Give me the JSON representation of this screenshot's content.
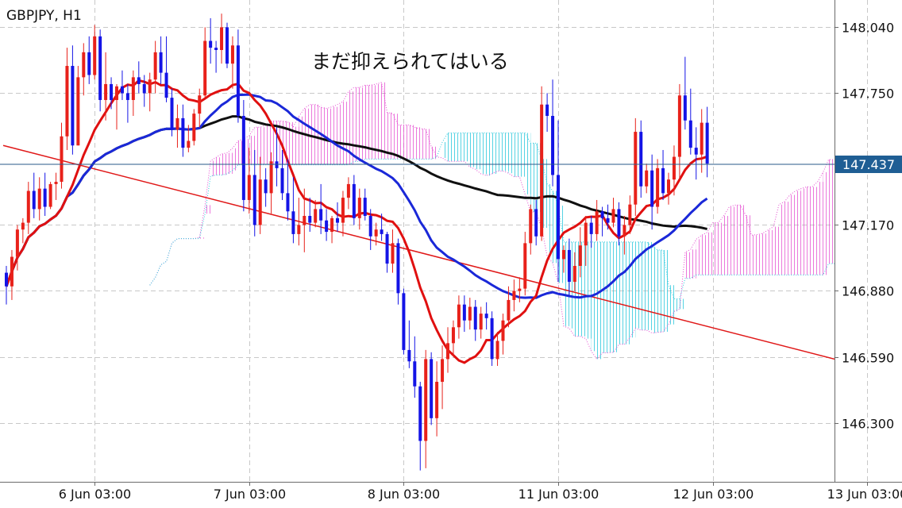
{
  "chart_title": "GBPJPY, H1",
  "annotation": "まだ抑えられてはいる",
  "current_price_label": "147.437",
  "colors": {
    "bull_candle": "#e8211a",
    "bear_candle": "#1414e6",
    "ma_short": "#e01010",
    "ma_mid": "#1a28d8",
    "ma_long": "#101010",
    "trendline": "#e01818",
    "cloud_bull": "#e44bd0",
    "cloud_bear": "#2cc8dc",
    "price_line": "#2a5a8a",
    "price_label_bg": "#1f5e94"
  },
  "chart_data": {
    "type": "candlestick",
    "title": "GBPJPY, H1",
    "y_ticks": [
      "148.040",
      "147.750",
      "147.170",
      "146.880",
      "146.590",
      "146.300"
    ],
    "x_ticks": [
      "6 Jun 03:00",
      "7 Jun 03:00",
      "8 Jun 03:00",
      "11 Jun 03:00",
      "12 Jun 03:00",
      "13 Jun 03:00"
    ],
    "ylim": [
      146.04,
      148.16
    ],
    "current_price": 147.437,
    "grid": true,
    "candles": [
      [
        146.96,
        146.99,
        146.82,
        146.9
      ],
      [
        146.9,
        147.06,
        146.84,
        147.03
      ],
      [
        147.03,
        147.17,
        146.97,
        147.15
      ],
      [
        147.15,
        147.2,
        147.09,
        147.18
      ],
      [
        147.18,
        147.36,
        147.13,
        147.32
      ],
      [
        147.32,
        147.4,
        147.2,
        147.24
      ],
      [
        147.24,
        147.38,
        147.19,
        147.33
      ],
      [
        147.33,
        147.4,
        147.21,
        147.25
      ],
      [
        147.25,
        147.36,
        147.24,
        147.35
      ],
      [
        147.35,
        147.4,
        147.28,
        147.36
      ],
      [
        147.36,
        147.62,
        147.33,
        147.56
      ],
      [
        147.56,
        147.95,
        147.5,
        147.87
      ],
      [
        147.87,
        147.96,
        147.48,
        147.52
      ],
      [
        147.52,
        147.87,
        147.52,
        147.82
      ],
      [
        147.82,
        147.97,
        147.74,
        147.93
      ],
      [
        147.93,
        148.0,
        147.79,
        147.83
      ],
      [
        147.83,
        148.05,
        147.81,
        148.0
      ],
      [
        148.0,
        148.03,
        147.67,
        147.72
      ],
      [
        147.72,
        147.93,
        147.63,
        147.79
      ],
      [
        147.79,
        147.82,
        147.68,
        147.72
      ],
      [
        147.72,
        147.79,
        147.59,
        147.78
      ],
      [
        147.78,
        147.85,
        147.72,
        147.75
      ],
      [
        147.75,
        147.79,
        147.62,
        147.72
      ],
      [
        147.72,
        147.85,
        147.65,
        147.82
      ],
      [
        147.82,
        147.89,
        147.75,
        147.79
      ],
      [
        147.79,
        147.83,
        147.69,
        147.75
      ],
      [
        147.75,
        147.84,
        147.67,
        147.81
      ],
      [
        147.81,
        147.98,
        147.75,
        147.93
      ],
      [
        147.93,
        148.0,
        147.79,
        147.84
      ],
      [
        147.84,
        148.0,
        147.71,
        147.73
      ],
      [
        147.73,
        147.77,
        147.56,
        147.59
      ],
      [
        147.59,
        147.7,
        147.51,
        147.64
      ],
      [
        147.64,
        147.7,
        147.47,
        147.51
      ],
      [
        147.51,
        147.61,
        147.49,
        147.54
      ],
      [
        147.54,
        147.68,
        147.52,
        147.66
      ],
      [
        147.66,
        147.77,
        147.6,
        147.74
      ],
      [
        147.74,
        148.04,
        147.73,
        147.98
      ],
      [
        147.98,
        148.08,
        147.88,
        147.95
      ],
      [
        147.95,
        147.98,
        147.84,
        147.94
      ],
      [
        147.94,
        148.1,
        147.88,
        148.04
      ],
      [
        148.04,
        148.06,
        147.86,
        147.88
      ],
      [
        147.88,
        148.0,
        147.77,
        147.96
      ],
      [
        147.96,
        148.03,
        147.62,
        147.65
      ],
      [
        147.65,
        147.72,
        147.23,
        147.28
      ],
      [
        147.28,
        147.51,
        147.22,
        147.39
      ],
      [
        147.39,
        147.5,
        147.12,
        147.17
      ],
      [
        147.17,
        147.47,
        147.13,
        147.37
      ],
      [
        147.37,
        147.42,
        147.25,
        147.31
      ],
      [
        147.31,
        147.49,
        147.22,
        147.45
      ],
      [
        147.45,
        147.6,
        147.34,
        147.42
      ],
      [
        147.42,
        147.5,
        147.28,
        147.31
      ],
      [
        147.31,
        147.46,
        147.19,
        147.23
      ],
      [
        147.23,
        147.38,
        147.09,
        147.13
      ],
      [
        147.13,
        147.29,
        147.08,
        147.17
      ],
      [
        147.17,
        147.33,
        147.05,
        147.21
      ],
      [
        147.21,
        147.29,
        147.14,
        147.18
      ],
      [
        147.18,
        147.28,
        147.16,
        147.24
      ],
      [
        147.24,
        147.35,
        147.13,
        147.19
      ],
      [
        147.19,
        147.24,
        147.1,
        147.14
      ],
      [
        147.14,
        147.21,
        147.09,
        147.2
      ],
      [
        147.2,
        147.27,
        147.14,
        147.18
      ],
      [
        147.18,
        147.32,
        147.12,
        147.29
      ],
      [
        147.29,
        147.38,
        147.24,
        147.35
      ],
      [
        147.35,
        147.39,
        147.17,
        147.2
      ],
      [
        147.2,
        147.33,
        147.15,
        147.29
      ],
      [
        147.29,
        147.33,
        147.19,
        147.21
      ],
      [
        147.21,
        147.24,
        147.06,
        147.12
      ],
      [
        147.12,
        147.18,
        147.08,
        147.15
      ],
      [
        147.15,
        147.22,
        147.1,
        147.13
      ],
      [
        147.13,
        147.14,
        146.96,
        147.0
      ],
      [
        147.0,
        147.15,
        146.96,
        147.09
      ],
      [
        147.09,
        147.11,
        146.82,
        146.87
      ],
      [
        146.87,
        146.89,
        146.6,
        146.62
      ],
      [
        146.62,
        146.75,
        146.54,
        146.57
      ],
      [
        146.57,
        146.68,
        146.41,
        146.46
      ],
      [
        146.46,
        146.48,
        146.09,
        146.22
      ],
      [
        146.22,
        146.62,
        146.1,
        146.58
      ],
      [
        146.58,
        146.61,
        146.29,
        146.32
      ],
      [
        146.32,
        146.57,
        146.24,
        146.48
      ],
      [
        146.48,
        146.64,
        146.36,
        146.58
      ],
      [
        146.58,
        146.72,
        146.52,
        146.65
      ],
      [
        146.65,
        146.75,
        146.59,
        146.72
      ],
      [
        146.72,
        146.86,
        146.67,
        146.82
      ],
      [
        146.82,
        146.86,
        146.7,
        146.75
      ],
      [
        146.75,
        146.85,
        146.71,
        146.81
      ],
      [
        146.81,
        146.84,
        146.66,
        146.71
      ],
      [
        146.71,
        146.81,
        146.67,
        146.78
      ],
      [
        146.78,
        146.83,
        146.71,
        146.76
      ],
      [
        146.76,
        146.79,
        146.55,
        146.58
      ],
      [
        146.58,
        146.7,
        146.55,
        146.66
      ],
      [
        146.66,
        146.78,
        146.6,
        146.75
      ],
      [
        146.75,
        146.9,
        146.72,
        146.84
      ],
      [
        146.84,
        146.93,
        146.79,
        146.88
      ],
      [
        146.88,
        146.94,
        146.83,
        146.89
      ],
      [
        146.89,
        147.14,
        146.86,
        147.09
      ],
      [
        147.09,
        147.26,
        147.04,
        147.24
      ],
      [
        147.24,
        147.28,
        147.08,
        147.12
      ],
      [
        147.12,
        147.78,
        147.1,
        147.7
      ],
      [
        147.7,
        147.75,
        147.58,
        147.65
      ],
      [
        147.65,
        147.81,
        147.34,
        147.39
      ],
      [
        147.39,
        147.63,
        146.92,
        147.02
      ],
      [
        147.02,
        147.08,
        146.96,
        147.06
      ],
      [
        147.06,
        147.11,
        146.86,
        146.92
      ],
      [
        146.92,
        147.05,
        146.88,
        146.99
      ],
      [
        146.99,
        147.16,
        146.94,
        147.08
      ],
      [
        147.08,
        147.21,
        146.99,
        147.18
      ],
      [
        147.18,
        147.21,
        147.07,
        147.13
      ],
      [
        147.13,
        147.28,
        147.1,
        147.23
      ],
      [
        147.23,
        147.25,
        147.12,
        147.2
      ],
      [
        147.2,
        147.26,
        147.15,
        147.18
      ],
      [
        147.18,
        147.29,
        147.16,
        147.24
      ],
      [
        147.24,
        147.27,
        147.08,
        147.12
      ],
      [
        147.12,
        147.21,
        147.04,
        147.17
      ],
      [
        147.17,
        147.3,
        147.13,
        147.26
      ],
      [
        147.26,
        147.64,
        147.21,
        147.58
      ],
      [
        147.58,
        147.63,
        147.29,
        147.34
      ],
      [
        147.34,
        147.44,
        147.31,
        147.41
      ],
      [
        147.41,
        147.48,
        147.15,
        147.25
      ],
      [
        147.25,
        147.46,
        147.22,
        147.42
      ],
      [
        147.42,
        147.5,
        147.28,
        147.31
      ],
      [
        147.31,
        147.4,
        147.26,
        147.37
      ],
      [
        147.37,
        147.52,
        147.3,
        147.47
      ],
      [
        147.47,
        147.79,
        147.37,
        147.74
      ],
      [
        147.74,
        147.91,
        147.59,
        147.63
      ],
      [
        147.63,
        147.77,
        147.48,
        147.51
      ],
      [
        147.51,
        147.6,
        147.37,
        147.48
      ],
      [
        147.48,
        147.68,
        147.4,
        147.62
      ],
      [
        147.62,
        147.69,
        147.38,
        147.44
      ]
    ],
    "x_tick_candle_index": [
      16,
      44,
      72,
      100,
      128,
      156
    ]
  }
}
